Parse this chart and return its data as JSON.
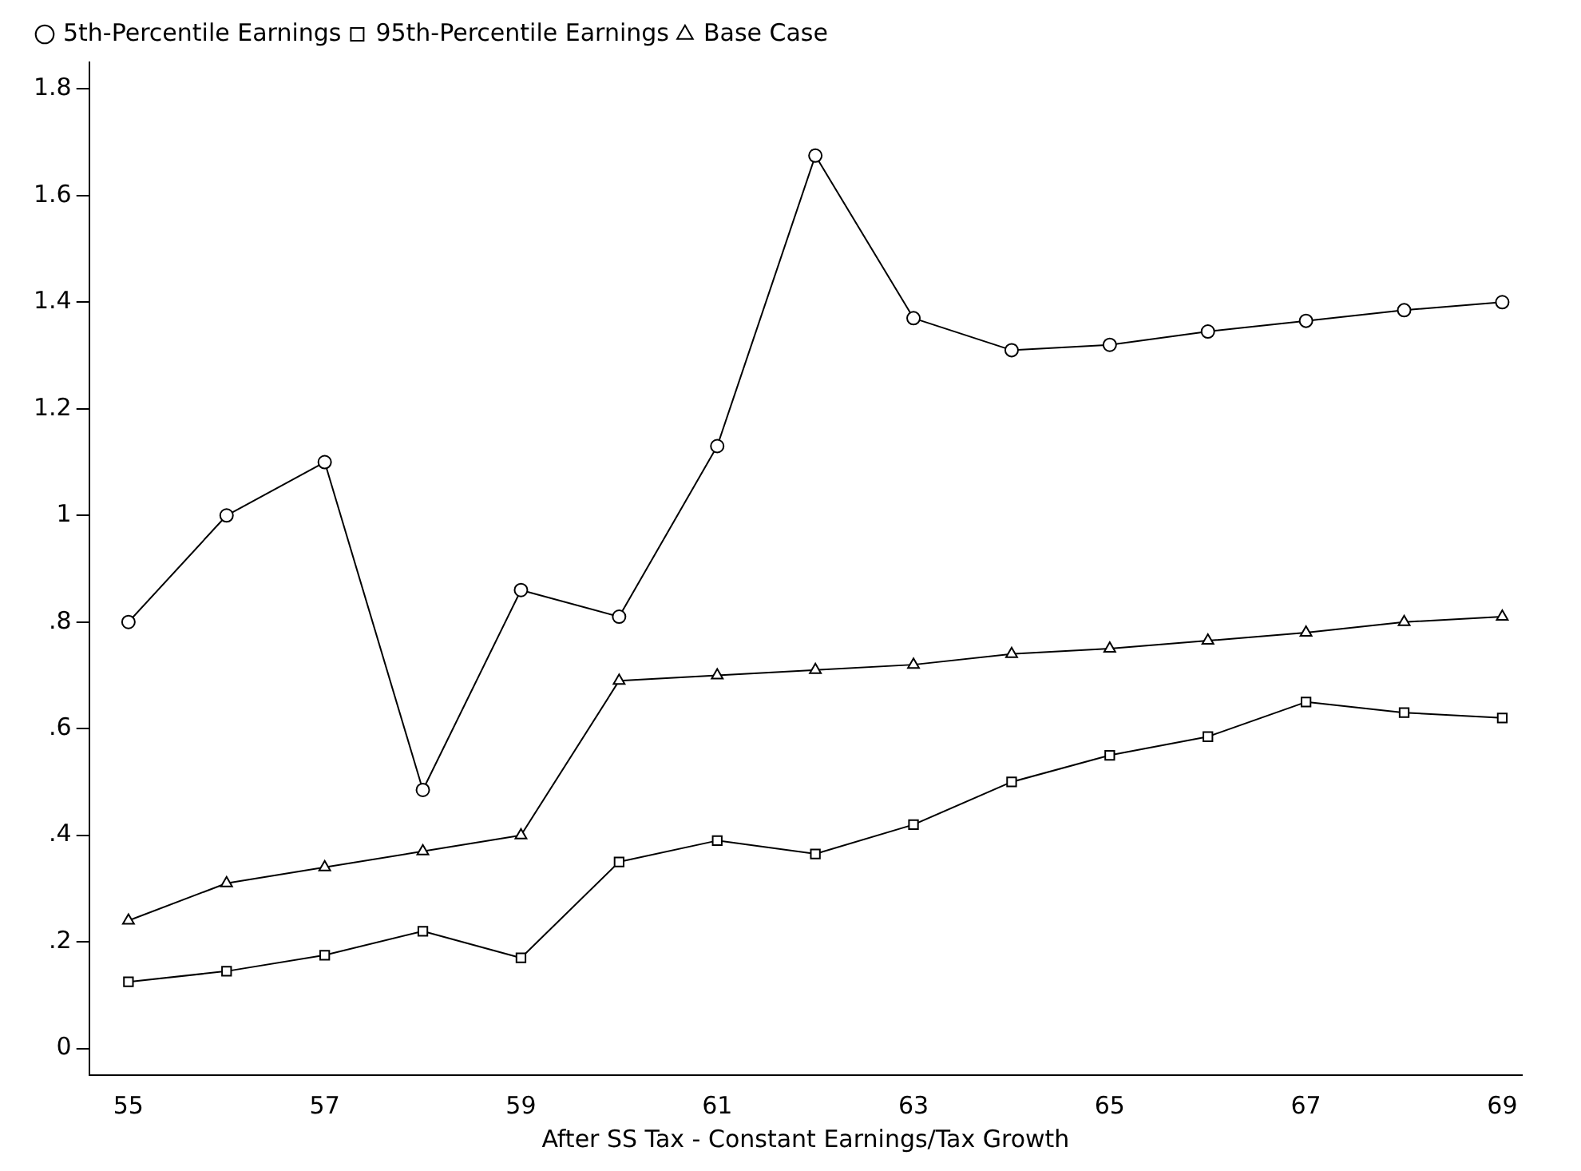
{
  "chart_data": {
    "type": "line",
    "xlabel": "After SS Tax - Constant Earnings/Tax Growth",
    "x": [
      55,
      56,
      57,
      58,
      59,
      60,
      61,
      62,
      63,
      64,
      65,
      66,
      67,
      68,
      69
    ],
    "series": [
      {
        "name": "5th-Percentile Earnings",
        "color": "#000000",
        "marker": "circle",
        "values": [
          0.8,
          1.0,
          1.1,
          0.485,
          0.86,
          0.81,
          1.13,
          1.675,
          1.37,
          1.31,
          1.32,
          1.345,
          1.365,
          1.385,
          1.4
        ]
      },
      {
        "name": "95th-Percentile Earnings",
        "color": "#000000",
        "marker": "square",
        "values": [
          0.125,
          0.145,
          0.175,
          0.22,
          0.17,
          0.35,
          0.39,
          0.365,
          0.42,
          0.5,
          0.55,
          0.585,
          0.65,
          0.63,
          0.62
        ]
      },
      {
        "name": "Base Case",
        "color": "#000000",
        "marker": "triangle",
        "values": [
          0.24,
          0.31,
          0.34,
          0.37,
          0.4,
          0.69,
          0.7,
          0.71,
          0.72,
          0.74,
          0.75,
          0.765,
          0.78,
          0.8,
          0.81
        ]
      }
    ],
    "xlim": [
      54.6,
      69.2
    ],
    "xticks": [
      55,
      57,
      59,
      61,
      63,
      65,
      67,
      69
    ],
    "ylim": [
      -0.05,
      1.85
    ],
    "yticks": [
      0,
      {
        "value": 0.2,
        "label": ".2"
      },
      {
        "value": 0.4,
        "label": ".4"
      },
      {
        "value": 0.6,
        "label": ".6"
      },
      {
        "value": 0.8,
        "label": ".8"
      },
      1,
      1.2,
      1.4,
      1.6,
      1.8
    ],
    "grid": false,
    "legend": "top left",
    "line_style": "solid"
  }
}
